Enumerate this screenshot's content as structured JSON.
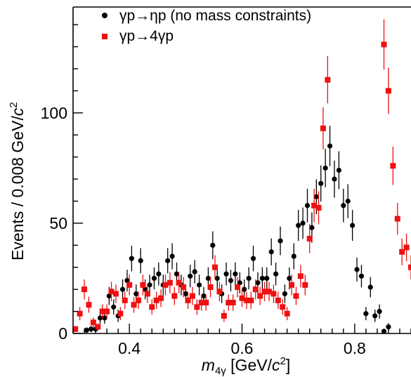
{
  "chart_data": {
    "type": "scatter",
    "title": "",
    "xlabel": {
      "var": "m",
      "sub": "4γ",
      "unit_prefix": " [GeV/",
      "unit_c": "c",
      "unit_sup": "2",
      "unit_suffix": "]"
    },
    "ylabel": {
      "prefix": "Events / 0.008 GeV/",
      "c": "c",
      "sup": "2"
    },
    "xlim": [
      0.3,
      0.9
    ],
    "ylim": [
      0,
      148
    ],
    "x_ticks": [
      "0.4",
      "0.6",
      "0.8"
    ],
    "y_ticks": [
      "0",
      "50",
      "100"
    ],
    "legend_position": "top-left",
    "series": [
      {
        "name": "γp→ηp (no mass constraints)",
        "marker": "circle",
        "color": "#000000",
        "points": [
          {
            "x": 0.324,
            "y": 1.5,
            "err": 1.2
          },
          {
            "x": 0.332,
            "y": 2,
            "err": 1.4
          },
          {
            "x": 0.34,
            "y": 2,
            "err": 1.4
          },
          {
            "x": 0.348,
            "y": 7,
            "err": 2.6
          },
          {
            "x": 0.356,
            "y": 7,
            "err": 2.6
          },
          {
            "x": 0.364,
            "y": 17,
            "err": 4.1
          },
          {
            "x": 0.372,
            "y": 12,
            "err": 3.5
          },
          {
            "x": 0.38,
            "y": 8,
            "err": 2.8
          },
          {
            "x": 0.388,
            "y": 20,
            "err": 4.5
          },
          {
            "x": 0.396,
            "y": 24,
            "err": 4.9
          },
          {
            "x": 0.404,
            "y": 34,
            "err": 5.8
          },
          {
            "x": 0.412,
            "y": 18,
            "err": 4.2
          },
          {
            "x": 0.42,
            "y": 33,
            "err": 5.7
          },
          {
            "x": 0.428,
            "y": 20,
            "err": 4.5
          },
          {
            "x": 0.436,
            "y": 22,
            "err": 4.7
          },
          {
            "x": 0.444,
            "y": 25,
            "err": 5
          },
          {
            "x": 0.452,
            "y": 27,
            "err": 5.2
          },
          {
            "x": 0.46,
            "y": 22,
            "err": 4.7
          },
          {
            "x": 0.468,
            "y": 33,
            "err": 5.7
          },
          {
            "x": 0.476,
            "y": 35,
            "err": 5.9
          },
          {
            "x": 0.484,
            "y": 27,
            "err": 5.2
          },
          {
            "x": 0.492,
            "y": 22,
            "err": 4.7
          },
          {
            "x": 0.5,
            "y": 18,
            "err": 4.2
          },
          {
            "x": 0.508,
            "y": 26,
            "err": 5.1
          },
          {
            "x": 0.516,
            "y": 28,
            "err": 5.3
          },
          {
            "x": 0.524,
            "y": 22,
            "err": 4.7
          },
          {
            "x": 0.532,
            "y": 17,
            "err": 4.1
          },
          {
            "x": 0.54,
            "y": 25,
            "err": 5
          },
          {
            "x": 0.548,
            "y": 40,
            "err": 6.3
          },
          {
            "x": 0.556,
            "y": 25,
            "err": 5
          },
          {
            "x": 0.564,
            "y": 18,
            "err": 4.2
          },
          {
            "x": 0.572,
            "y": 27,
            "err": 5.2
          },
          {
            "x": 0.58,
            "y": 24,
            "err": 4.9
          },
          {
            "x": 0.588,
            "y": 27,
            "err": 5.2
          },
          {
            "x": 0.596,
            "y": 23,
            "err": 4.8
          },
          {
            "x": 0.604,
            "y": 20,
            "err": 4.5
          },
          {
            "x": 0.612,
            "y": 25,
            "err": 5
          },
          {
            "x": 0.62,
            "y": 34,
            "err": 5.8
          },
          {
            "x": 0.628,
            "y": 23,
            "err": 4.8
          },
          {
            "x": 0.636,
            "y": 25,
            "err": 5
          },
          {
            "x": 0.644,
            "y": 25,
            "err": 5
          },
          {
            "x": 0.652,
            "y": 37,
            "err": 6.1
          },
          {
            "x": 0.66,
            "y": 27,
            "err": 5.2
          },
          {
            "x": 0.668,
            "y": 42,
            "err": 6.5
          },
          {
            "x": 0.676,
            "y": 18,
            "err": 4.2
          },
          {
            "x": 0.684,
            "y": 25,
            "err": 5
          },
          {
            "x": 0.692,
            "y": 35,
            "err": 5.9
          },
          {
            "x": 0.7,
            "y": 49,
            "err": 7
          },
          {
            "x": 0.708,
            "y": 50,
            "err": 7.1
          },
          {
            "x": 0.716,
            "y": 58,
            "err": 7.6
          },
          {
            "x": 0.724,
            "y": 48,
            "err": 6.9
          },
          {
            "x": 0.732,
            "y": 62,
            "err": 7.9
          },
          {
            "x": 0.74,
            "y": 68,
            "err": 8.2
          },
          {
            "x": 0.748,
            "y": 75,
            "err": 8.7
          },
          {
            "x": 0.756,
            "y": 85,
            "err": 9.2
          },
          {
            "x": 0.764,
            "y": 70,
            "err": 8.4
          },
          {
            "x": 0.772,
            "y": 74,
            "err": 8.6
          },
          {
            "x": 0.78,
            "y": 58,
            "err": 7.6
          },
          {
            "x": 0.788,
            "y": 60,
            "err": 7.7
          },
          {
            "x": 0.796,
            "y": 49,
            "err": 7
          },
          {
            "x": 0.804,
            "y": 29,
            "err": 5.4
          },
          {
            "x": 0.812,
            "y": 26,
            "err": 5.1
          },
          {
            "x": 0.82,
            "y": 9,
            "err": 3
          },
          {
            "x": 0.828,
            "y": 21,
            "err": 4.6
          },
          {
            "x": 0.836,
            "y": 8,
            "err": 2.8
          },
          {
            "x": 0.844,
            "y": 10,
            "err": 3.2
          },
          {
            "x": 0.852,
            "y": 1,
            "err": 1
          },
          {
            "x": 0.86,
            "y": 3,
            "err": 1.7
          }
        ]
      },
      {
        "name": "γp→4γp",
        "marker": "square",
        "color": "#ee1111",
        "points": [
          {
            "x": 0.304,
            "y": 2,
            "err": 1.4
          },
          {
            "x": 0.312,
            "y": 9,
            "err": 3
          },
          {
            "x": 0.32,
            "y": 20,
            "err": 4.5
          },
          {
            "x": 0.328,
            "y": 13,
            "err": 3.6
          },
          {
            "x": 0.336,
            "y": 5,
            "err": 2.2
          },
          {
            "x": 0.344,
            "y": 3,
            "err": 1.7
          },
          {
            "x": 0.352,
            "y": 10,
            "err": 3.2
          },
          {
            "x": 0.36,
            "y": 10,
            "err": 3.2
          },
          {
            "x": 0.368,
            "y": 19,
            "err": 4.4
          },
          {
            "x": 0.376,
            "y": 18,
            "err": 4.2
          },
          {
            "x": 0.384,
            "y": 9,
            "err": 3
          },
          {
            "x": 0.392,
            "y": 15,
            "err": 3.9
          },
          {
            "x": 0.4,
            "y": 22,
            "err": 4.7
          },
          {
            "x": 0.408,
            "y": 13,
            "err": 3.6
          },
          {
            "x": 0.416,
            "y": 15,
            "err": 3.9
          },
          {
            "x": 0.424,
            "y": 22,
            "err": 4.7
          },
          {
            "x": 0.432,
            "y": 18,
            "err": 4.2
          },
          {
            "x": 0.44,
            "y": 12,
            "err": 3.5
          },
          {
            "x": 0.448,
            "y": 15,
            "err": 3.9
          },
          {
            "x": 0.456,
            "y": 16,
            "err": 4
          },
          {
            "x": 0.464,
            "y": 22,
            "err": 4.7
          },
          {
            "x": 0.472,
            "y": 23,
            "err": 4.8
          },
          {
            "x": 0.48,
            "y": 17,
            "err": 4.1
          },
          {
            "x": 0.488,
            "y": 23,
            "err": 4.8
          },
          {
            "x": 0.496,
            "y": 21,
            "err": 4.6
          },
          {
            "x": 0.504,
            "y": 15,
            "err": 3.9
          },
          {
            "x": 0.512,
            "y": 17,
            "err": 4.1
          },
          {
            "x": 0.52,
            "y": 12,
            "err": 3.5
          },
          {
            "x": 0.528,
            "y": 14,
            "err": 3.7
          },
          {
            "x": 0.536,
            "y": 14,
            "err": 3.7
          },
          {
            "x": 0.544,
            "y": 21,
            "err": 4.6
          },
          {
            "x": 0.552,
            "y": 30,
            "err": 5.5
          },
          {
            "x": 0.56,
            "y": 19,
            "err": 4.4
          },
          {
            "x": 0.568,
            "y": 8,
            "err": 2.8
          },
          {
            "x": 0.576,
            "y": 14,
            "err": 3.7
          },
          {
            "x": 0.584,
            "y": 14,
            "err": 3.7
          },
          {
            "x": 0.592,
            "y": 21,
            "err": 4.6
          },
          {
            "x": 0.6,
            "y": 16,
            "err": 4
          },
          {
            "x": 0.608,
            "y": 15,
            "err": 3.9
          },
          {
            "x": 0.616,
            "y": 15,
            "err": 3.9
          },
          {
            "x": 0.624,
            "y": 20,
            "err": 4.5
          },
          {
            "x": 0.632,
            "y": 17,
            "err": 4.1
          },
          {
            "x": 0.64,
            "y": 19,
            "err": 4.4
          },
          {
            "x": 0.648,
            "y": 19,
            "err": 4.4
          },
          {
            "x": 0.656,
            "y": 18,
            "err": 4.2
          },
          {
            "x": 0.664,
            "y": 15,
            "err": 3.9
          },
          {
            "x": 0.672,
            "y": 12,
            "err": 3.5
          },
          {
            "x": 0.68,
            "y": 9,
            "err": 3
          },
          {
            "x": 0.688,
            "y": 22,
            "err": 4.7
          },
          {
            "x": 0.696,
            "y": 17,
            "err": 4.1
          },
          {
            "x": 0.704,
            "y": 26,
            "err": 5.1
          },
          {
            "x": 0.712,
            "y": 22,
            "err": 4.7
          },
          {
            "x": 0.72,
            "y": 43,
            "err": 6.6
          },
          {
            "x": 0.728,
            "y": 58,
            "err": 7.6
          },
          {
            "x": 0.736,
            "y": 57,
            "err": 7.5
          },
          {
            "x": 0.744,
            "y": 93,
            "err": 9.6
          },
          {
            "x": 0.752,
            "y": 115,
            "err": 10.7
          },
          {
            "x": 0.852,
            "y": 131,
            "err": 11.4
          },
          {
            "x": 0.86,
            "y": 110,
            "err": 10.5
          },
          {
            "x": 0.868,
            "y": 76,
            "err": 8.7
          },
          {
            "x": 0.876,
            "y": 52,
            "err": 7.2
          },
          {
            "x": 0.884,
            "y": 37,
            "err": 6.1
          },
          {
            "x": 0.892,
            "y": 39,
            "err": 6.2
          },
          {
            "x": 0.9,
            "y": 30,
            "err": 5.5
          }
        ]
      }
    ]
  }
}
